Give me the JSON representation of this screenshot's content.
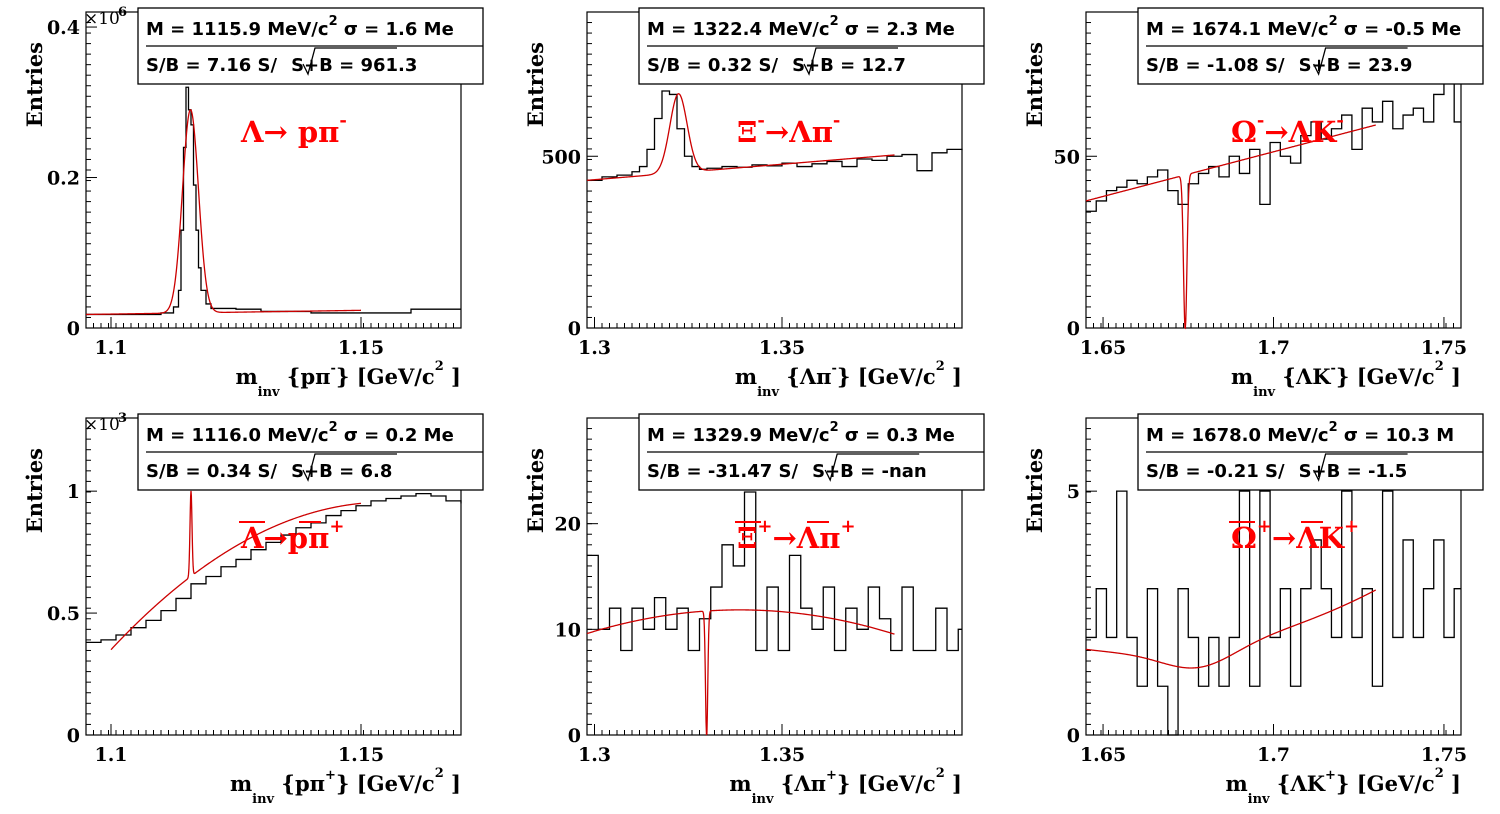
{
  "colors": {
    "histogram": "#000000",
    "fit": "#cc0000",
    "decay_label": "#ff0000",
    "frame": "#000000"
  },
  "chart_data": [
    {
      "type": "histogram",
      "ylabel": "Entries",
      "exponent": "×10",
      "exp_power": "6",
      "xlim": [
        1.095,
        1.17
      ],
      "ylim": [
        0,
        0.42
      ],
      "xticks": [
        {
          "v": 1.1,
          "label": "1.1"
        },
        {
          "v": 1.15,
          "label": "1.15"
        }
      ],
      "yticks": [
        {
          "v": 0,
          "label": "0"
        },
        {
          "v": 0.2,
          "label": "0.2"
        },
        {
          "v": 0.4,
          "label": "0.4"
        }
      ],
      "xlabel_main": "m",
      "xlabel_sub": "inv",
      "xlabel_expr": "{pπ",
      "xlabel_sup": "-",
      "xlabel_tail": "} [GeV/c",
      "xlabel_pow": "2",
      "xlabel_end": "]",
      "stats_line1_pre": "M = 1115.9 MeV/c",
      "stats_line1_pow": "2",
      "stats_line1_post": " σ = 1.6 Me",
      "stats_line2_pre": "S/B = 7.16   S/",
      "stats_line2_post": "S+B = 961.3",
      "decay_label": "Λ→ pπ",
      "decay_sup": "-",
      "x": [
        1.095,
        1.105,
        1.11,
        1.1125,
        1.1135,
        1.114,
        1.1145,
        1.115,
        1.1155,
        1.116,
        1.1165,
        1.117,
        1.1175,
        1.118,
        1.119,
        1.12,
        1.125,
        1.13,
        1.14,
        1.15,
        1.16,
        1.17
      ],
      "hist": [
        0.018,
        0.018,
        0.02,
        0.028,
        0.05,
        0.13,
        0.24,
        0.32,
        0.29,
        0.27,
        0.19,
        0.13,
        0.08,
        0.05,
        0.032,
        0.026,
        0.025,
        0.022,
        0.02,
        0.02,
        0.025,
        0.025
      ],
      "fit": {
        "type": "gauss",
        "mean": 1.1159,
        "sigma": 0.0016,
        "amp": 0.27,
        "b0": 0.018,
        "b1": 0.1,
        "range": [
          1.095,
          1.15
        ]
      }
    },
    {
      "type": "histogram",
      "ylabel": "Entries",
      "xlim": [
        1.298,
        1.398
      ],
      "ylim": [
        0,
        920
      ],
      "xticks": [
        {
          "v": 1.3,
          "label": "1.3"
        },
        {
          "v": 1.35,
          "label": "1.35"
        }
      ],
      "yticks": [
        {
          "v": 0,
          "label": "0"
        },
        {
          "v": 500,
          "label": "500"
        }
      ],
      "xlabel_main": "m",
      "xlabel_sub": "inv",
      "xlabel_expr": "{Λπ",
      "xlabel_sup": "-",
      "xlabel_tail": "} [GeV/c",
      "xlabel_pow": "2",
      "xlabel_end": "]",
      "stats_line1_pre": "M = 1322.4 MeV/c",
      "stats_line1_pow": "2",
      "stats_line1_post": " σ = 2.3 Me",
      "stats_line2_pre": "S/B = 0.32   S/",
      "stats_line2_post": "S+B = 12.7",
      "decay_label": "Ξ",
      "decay_sup": "-",
      "decay_label2": "→Λπ",
      "decay_sup2": "-",
      "x": [
        1.298,
        1.302,
        1.306,
        1.31,
        1.312,
        1.314,
        1.316,
        1.318,
        1.32,
        1.322,
        1.324,
        1.326,
        1.328,
        1.33,
        1.334,
        1.338,
        1.342,
        1.346,
        1.35,
        1.354,
        1.358,
        1.362,
        1.366,
        1.37,
        1.374,
        1.378,
        1.382,
        1.386,
        1.39,
        1.394,
        1.398
      ],
      "hist": [
        430,
        440,
        445,
        455,
        470,
        520,
        610,
        690,
        680,
        580,
        500,
        470,
        462,
        465,
        470,
        468,
        475,
        472,
        480,
        470,
        478,
        485,
        470,
        492,
        488,
        500,
        505,
        458,
        510,
        520,
        518
      ],
      "fit": {
        "type": "gauss",
        "mean": 1.3224,
        "sigma": 0.0023,
        "amp": 230,
        "b0": 430,
        "b1": 900,
        "range": [
          1.298,
          1.38
        ]
      }
    },
    {
      "type": "histogram",
      "ylabel": "Entries",
      "xlim": [
        1.645,
        1.755
      ],
      "ylim": [
        0,
        92
      ],
      "xticks": [
        {
          "v": 1.65,
          "label": "1.65"
        },
        {
          "v": 1.7,
          "label": "1.7"
        },
        {
          "v": 1.75,
          "label": "1.75"
        }
      ],
      "yticks": [
        {
          "v": 0,
          "label": "0"
        },
        {
          "v": 50,
          "label": "50"
        }
      ],
      "xlabel_main": "m",
      "xlabel_sub": "inv",
      "xlabel_expr": "{ΛK",
      "xlabel_sup": "-",
      "xlabel_tail": "} [GeV/c",
      "xlabel_pow": "2",
      "xlabel_end": "]",
      "stats_line1_pre": "M = 1674.1 MeV/c",
      "stats_line1_pow": "2",
      "stats_line1_post": " σ = -0.5 Me",
      "stats_line2_pre": "S/B = -1.08   S/",
      "stats_line2_post": "S+B = 23.9",
      "decay_label": "Ω",
      "decay_sup": "-",
      "decay_label2": "→ΛK",
      "decay_sup2": "-",
      "x": [
        1.645,
        1.648,
        1.651,
        1.654,
        1.657,
        1.66,
        1.663,
        1.666,
        1.669,
        1.672,
        1.675,
        1.678,
        1.681,
        1.684,
        1.687,
        1.69,
        1.693,
        1.696,
        1.699,
        1.702,
        1.705,
        1.708,
        1.711,
        1.714,
        1.717,
        1.72,
        1.723,
        1.726,
        1.729,
        1.732,
        1.735,
        1.738,
        1.741,
        1.744,
        1.747,
        1.75,
        1.753
      ],
      "hist": [
        34,
        37,
        40,
        41,
        43,
        42,
        44,
        46,
        40,
        36,
        42,
        45,
        47,
        44,
        50,
        45,
        52,
        36,
        54,
        50,
        48,
        56,
        60,
        55,
        58,
        62,
        52,
        64,
        60,
        66,
        58,
        62,
        64,
        60,
        68,
        72,
        60
      ],
      "fit": {
        "type": "gauss",
        "mean": 1.6741,
        "sigma": 0.0005,
        "amp": -45,
        "b0": 37,
        "b1": 260,
        "range": [
          1.645,
          1.73
        ]
      }
    },
    {
      "type": "histogram",
      "ylabel": "Entries",
      "exponent": "×10",
      "exp_power": "3",
      "xlim": [
        1.095,
        1.17
      ],
      "ylim": [
        0,
        1.3
      ],
      "xticks": [
        {
          "v": 1.1,
          "label": "1.1"
        },
        {
          "v": 1.15,
          "label": "1.15"
        }
      ],
      "yticks": [
        {
          "v": 0,
          "label": "0"
        },
        {
          "v": 0.5,
          "label": "0.5"
        },
        {
          "v": 1,
          "label": "1"
        }
      ],
      "xlabel_main": "m",
      "xlabel_sub": "inv",
      "xlabel_expr": "{pπ",
      "xlabel_sup": "+",
      "xlabel_tail": "} [GeV/c",
      "xlabel_pow": "2",
      "xlabel_end": "]",
      "stats_line1_pre": "M = 1116.0 MeV/c",
      "stats_line1_pow": "2",
      "stats_line1_post": " σ = 0.2 Me",
      "stats_line2_pre": "S/B = 0.34   S/",
      "stats_line2_post": "S+B = 6.8",
      "decay_label": "Λ→pπ",
      "decay_sup": "+",
      "x": [
        1.095,
        1.098,
        1.101,
        1.104,
        1.107,
        1.11,
        1.113,
        1.116,
        1.119,
        1.122,
        1.125,
        1.128,
        1.131,
        1.134,
        1.137,
        1.14,
        1.143,
        1.146,
        1.149,
        1.152,
        1.155,
        1.158,
        1.161,
        1.164,
        1.167,
        1.17
      ],
      "hist": [
        0.38,
        0.39,
        0.41,
        0.44,
        0.47,
        0.51,
        0.56,
        0.62,
        0.65,
        0.69,
        0.72,
        0.76,
        0.79,
        0.82,
        0.85,
        0.87,
        0.9,
        0.92,
        0.94,
        0.96,
        0.97,
        0.98,
        0.99,
        0.98,
        0.96,
        0.95
      ],
      "fit": {
        "type": "gauss_poly",
        "mean": 1.116,
        "sigma": 0.0002,
        "amp": 0.35,
        "p0": 0.35,
        "p1": 22,
        "p2": -200,
        "origin": 1.1,
        "range": [
          1.1,
          1.15
        ]
      }
    },
    {
      "type": "histogram",
      "ylabel": "Entries",
      "xlim": [
        1.298,
        1.398
      ],
      "ylim": [
        0,
        30
      ],
      "xticks": [
        {
          "v": 1.3,
          "label": "1.3"
        },
        {
          "v": 1.35,
          "label": "1.35"
        }
      ],
      "yticks": [
        {
          "v": 0,
          "label": "0"
        },
        {
          "v": 10,
          "label": "10"
        },
        {
          "v": 20,
          "label": "20"
        }
      ],
      "xlabel_main": "m",
      "xlabel_sub": "inv",
      "xlabel_expr": "{Λπ",
      "xlabel_sup": "+",
      "xlabel_tail": "} [GeV/c",
      "xlabel_pow": "2",
      "xlabel_end": "]",
      "stats_line1_pre": "M = 1329.9 MeV/c",
      "stats_line1_pow": "2",
      "stats_line1_post": " σ = 0.3 Me",
      "stats_line2_pre": "S/B = -31.47   S/",
      "stats_line2_post": "S+B = -nan",
      "decay_label": "Ξ",
      "decay_sup": "+",
      "decay_label2": "→Λπ",
      "decay_sup2": "+",
      "x": [
        1.298,
        1.301,
        1.304,
        1.307,
        1.31,
        1.313,
        1.316,
        1.319,
        1.322,
        1.325,
        1.328,
        1.331,
        1.334,
        1.337,
        1.34,
        1.343,
        1.346,
        1.349,
        1.352,
        1.355,
        1.358,
        1.361,
        1.364,
        1.367,
        1.37,
        1.373,
        1.376,
        1.379,
        1.382,
        1.385,
        1.388,
        1.391,
        1.394,
        1.397
      ],
      "hist": [
        17,
        10,
        12,
        8,
        12,
        10,
        13,
        10,
        12,
        8,
        11,
        14,
        18,
        16,
        23,
        8,
        14,
        8,
        17,
        12,
        10,
        14,
        8,
        12,
        10,
        14,
        11,
        8,
        14,
        8,
        8,
        12,
        8,
        10
      ],
      "fit": {
        "type": "gauss_poly",
        "mean": 1.3299,
        "sigma": 0.0003,
        "amp": -12,
        "p0": 9.6,
        "p1": 110,
        "p2": -1350,
        "origin": 1.298,
        "range": [
          1.298,
          1.38
        ]
      }
    },
    {
      "type": "histogram",
      "ylabel": "Entries",
      "xlim": [
        1.645,
        1.755
      ],
      "ylim": [
        0,
        6.5
      ],
      "xticks": [
        {
          "v": 1.65,
          "label": "1.65"
        },
        {
          "v": 1.7,
          "label": "1.7"
        },
        {
          "v": 1.75,
          "label": "1.75"
        }
      ],
      "yticks": [
        {
          "v": 0,
          "label": "0"
        },
        {
          "v": 5,
          "label": "5"
        }
      ],
      "xlabel_main": "m",
      "xlabel_sub": "inv",
      "xlabel_expr": "{ΛK",
      "xlabel_sup": "+",
      "xlabel_tail": "} [GeV/c",
      "xlabel_pow": "2",
      "xlabel_end": "]",
      "stats_line1_pre": "M = 1678.0 MeV/c",
      "stats_line1_pow": "2",
      "stats_line1_post": " σ = 10.3 M",
      "stats_line2_pre": "S/B = -0.21   S/",
      "stats_line2_post": "S+B = -1.5",
      "decay_label": "Ω",
      "decay_sup": "+",
      "decay_label2": "→ΛK",
      "decay_sup2": "+",
      "x": [
        1.645,
        1.648,
        1.651,
        1.654,
        1.657,
        1.66,
        1.663,
        1.666,
        1.669,
        1.672,
        1.675,
        1.678,
        1.681,
        1.684,
        1.687,
        1.69,
        1.693,
        1.696,
        1.699,
        1.702,
        1.705,
        1.708,
        1.711,
        1.714,
        1.717,
        1.72,
        1.723,
        1.726,
        1.729,
        1.732,
        1.735,
        1.738,
        1.741,
        1.744,
        1.747,
        1.75,
        1.753
      ],
      "hist": [
        2,
        3,
        2,
        5,
        2,
        1,
        3,
        1,
        0,
        3,
        2,
        1,
        2,
        1,
        2,
        5,
        1,
        5,
        2,
        3,
        1,
        3,
        4,
        3,
        2,
        5,
        2,
        3,
        1,
        5,
        2,
        4,
        2,
        3,
        4,
        2,
        3
      ],
      "fit": {
        "type": "gauss_poly",
        "mean": 1.678,
        "sigma": 0.0103,
        "amp": -0.4,
        "p0": 1.7,
        "p1": 0,
        "p2": 260,
        "origin": 1.66,
        "range": [
          1.645,
          1.73
        ]
      }
    }
  ]
}
